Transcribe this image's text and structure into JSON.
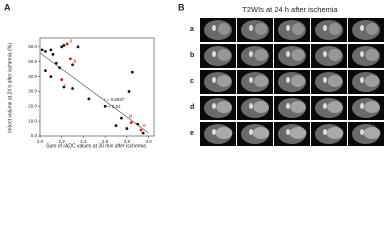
{
  "chart_data": {
    "type": "scatter",
    "panel_label": "A",
    "xlabel": "Sum of rADC values at 30 min after ischemia",
    "ylabel": "Infarct volume at 24 h after ischemia (%)",
    "xlim": [
      2.0,
      3.05
    ],
    "ylim": [
      0,
      66
    ],
    "xticks": [
      {
        "value": 2.0,
        "label": "2.0"
      },
      {
        "value": 2.2,
        "label": "2.2"
      },
      {
        "value": 2.4,
        "label": "2.4"
      },
      {
        "value": 2.6,
        "label": "2.6"
      },
      {
        "value": 2.8,
        "label": "2.8"
      },
      {
        "value": 3.0,
        "label": "3.0"
      }
    ],
    "yticks": [
      {
        "value": 0,
        "label": "0.0"
      },
      {
        "value": 10,
        "label": "10.0"
      },
      {
        "value": 20,
        "label": "20.0"
      },
      {
        "value": 30,
        "label": "30.0"
      },
      {
        "value": 40,
        "label": "40.0"
      },
      {
        "value": 50,
        "label": "50.0"
      },
      {
        "value": 60,
        "label": "60.0"
      }
    ],
    "series": [
      {
        "color": "#111111",
        "x": [
          2.02,
          2.05,
          2.1,
          2.12,
          2.15,
          2.1,
          2.05,
          2.18,
          2.2,
          2.22,
          2.35,
          2.3,
          2.22,
          2.3,
          2.45,
          2.6,
          2.75,
          2.8,
          2.9,
          2.85,
          2.95,
          2.7,
          2.82
        ],
        "values": [
          58,
          57,
          58,
          55,
          49,
          40,
          44,
          46,
          60,
          61,
          60,
          48,
          33,
          32,
          25,
          20,
          12,
          5,
          8,
          43,
          2,
          7,
          30
        ]
      },
      {
        "color": "#d42020",
        "x": [
          2.25,
          2.28,
          2.2,
          2.84,
          2.93
        ],
        "values": [
          62,
          52,
          38,
          9,
          4
        ]
      }
    ],
    "trend_line": {
      "x": [
        2.0,
        3.0
      ],
      "values": [
        56,
        2
      ]
    },
    "annotations": [
      {
        "text": "a",
        "x": 2.27,
        "y": 64
      },
      {
        "text": "b",
        "x": 2.31,
        "y": 50
      },
      {
        "text": "c",
        "x": 2.22,
        "y": 34
      },
      {
        "text": "d",
        "x": 2.82,
        "y": 13
      },
      {
        "text": "e",
        "x": 2.95,
        "y": 7
      }
    ],
    "stats": [
      "r = 0.6937",
      "P < 0.01"
    ]
  },
  "figure_b": {
    "panel_label": "B",
    "title": "T2WIs at 24 h after ischemia",
    "rows": [
      "a",
      "b",
      "c",
      "d",
      "e"
    ]
  }
}
